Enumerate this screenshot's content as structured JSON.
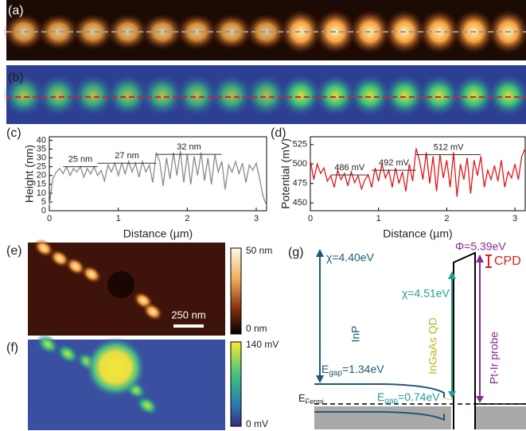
{
  "panels": {
    "a": "(a)",
    "b": "(b)",
    "e": "(e)",
    "f": "(f)",
    "g": "(g)"
  },
  "chart_data": [
    {
      "type": "line",
      "label": "(c)",
      "color": "#8a8a8a",
      "xlabel": "Distance (µm)",
      "ylabel": "Height (nm)",
      "x": [
        0,
        0.05,
        0.1,
        0.15,
        0.2,
        0.25,
        0.3,
        0.35,
        0.4,
        0.45,
        0.5,
        0.55,
        0.6,
        0.65,
        0.7,
        0.75,
        0.8,
        0.85,
        0.9,
        0.95,
        1,
        1.05,
        1.1,
        1.15,
        1.2,
        1.25,
        1.3,
        1.35,
        1.4,
        1.45,
        1.5,
        1.55,
        1.6,
        1.65,
        1.7,
        1.75,
        1.8,
        1.85,
        1.9,
        1.95,
        2,
        2.05,
        2.1,
        2.15,
        2.2,
        2.25,
        2.3,
        2.35,
        2.4,
        2.45,
        2.5,
        2.55,
        2.6,
        2.65,
        2.7,
        2.75,
        2.8,
        2.85,
        2.9,
        2.95,
        3,
        3.05,
        3.1,
        3.15
      ],
      "values": [
        3,
        18,
        22,
        24,
        21,
        25,
        20,
        24,
        22,
        25,
        19,
        24,
        21,
        25,
        20,
        23,
        17,
        26,
        22,
        27,
        20,
        27,
        21,
        28,
        22,
        27,
        19,
        28,
        22,
        26,
        16,
        33,
        28,
        14,
        30,
        18,
        33,
        20,
        34,
        16,
        32,
        15,
        31,
        20,
        33,
        17,
        30,
        15,
        32,
        22,
        28,
        12,
        26,
        22,
        28,
        21,
        27,
        16,
        26,
        23,
        27,
        18,
        8,
        3
      ],
      "xlim": [
        0,
        3.15
      ],
      "xticks": [
        0,
        1,
        2,
        3
      ],
      "ylim": [
        0,
        42
      ],
      "yticks": [
        0,
        5,
        10,
        15,
        20,
        25,
        30,
        35,
        40
      ],
      "annotations": [
        {
          "text": "25 nm",
          "y": 25,
          "x": [
            0.2,
            0.7
          ]
        },
        {
          "text": "27 nm",
          "y": 27,
          "x": [
            0.7,
            1.55
          ]
        },
        {
          "text": "32 nm",
          "y": 32,
          "x": [
            1.55,
            2.5
          ]
        }
      ]
    },
    {
      "type": "line",
      "label": "(d)",
      "color": "#e0161b",
      "xlabel": "Distance (µm)",
      "ylabel": "Potential (mV)",
      "x": [
        0,
        0.05,
        0.1,
        0.15,
        0.2,
        0.25,
        0.3,
        0.35,
        0.4,
        0.45,
        0.5,
        0.55,
        0.6,
        0.65,
        0.7,
        0.75,
        0.8,
        0.85,
        0.9,
        0.95,
        1,
        1.05,
        1.1,
        1.15,
        1.2,
        1.25,
        1.3,
        1.35,
        1.4,
        1.45,
        1.5,
        1.55,
        1.6,
        1.65,
        1.7,
        1.75,
        1.8,
        1.85,
        1.9,
        1.95,
        2,
        2.05,
        2.1,
        2.15,
        2.2,
        2.25,
        2.3,
        2.35,
        2.4,
        2.45,
        2.5,
        2.55,
        2.6,
        2.65,
        2.7,
        2.75,
        2.8,
        2.85,
        2.9,
        2.95,
        3,
        3.05,
        3.1,
        3.15
      ],
      "values": [
        505,
        480,
        500,
        488,
        495,
        478,
        485,
        470,
        492,
        480,
        488,
        472,
        490,
        476,
        485,
        468,
        480,
        486,
        470,
        495,
        478,
        500,
        482,
        492,
        470,
        495,
        475,
        490,
        465,
        500,
        478,
        520,
        505,
        480,
        515,
        475,
        510,
        465,
        512,
        482,
        505,
        470,
        515,
        458,
        500,
        480,
        508,
        462,
        505,
        485,
        510,
        470,
        492,
        480,
        498,
        478,
        505,
        470,
        490,
        482,
        500,
        480,
        510,
        520
      ],
      "xlim": [
        0,
        3.15
      ],
      "xticks": [
        0,
        1,
        2,
        3
      ],
      "ylim": [
        440,
        535
      ],
      "yticks": [
        450,
        475,
        500,
        525
      ],
      "annotations": [
        {
          "text": "486 mV",
          "y": 486,
          "x": [
            0.3,
            0.85
          ]
        },
        {
          "text": "492 mV",
          "y": 492,
          "x": [
            0.9,
            1.55
          ]
        },
        {
          "text": "512 mV",
          "y": 512,
          "x": [
            1.55,
            2.5
          ]
        }
      ]
    }
  ],
  "colorbars": {
    "e": {
      "max": "50 nm",
      "min": "0 nm"
    },
    "f": {
      "max": "140 mV",
      "min": "0 mV"
    }
  },
  "scalebar": "250 nm",
  "band": {
    "chi_inp": "χ=4.40eV",
    "chi_qd": "χ=4.51eV",
    "phi": "Φ=5.39eV",
    "cpd": "CPD",
    "inp": "InP",
    "qd": "InGaAs QD",
    "probe": "Pt-Ir probe",
    "egap_inp": {
      "main": "E",
      "sub": "gap",
      "rest": "=1.34eV"
    },
    "egap_qd": {
      "main": "E",
      "sub": "gap",
      "rest": "=0.74eV"
    },
    "fermi": {
      "main": "E",
      "sub": "Fermi"
    }
  }
}
